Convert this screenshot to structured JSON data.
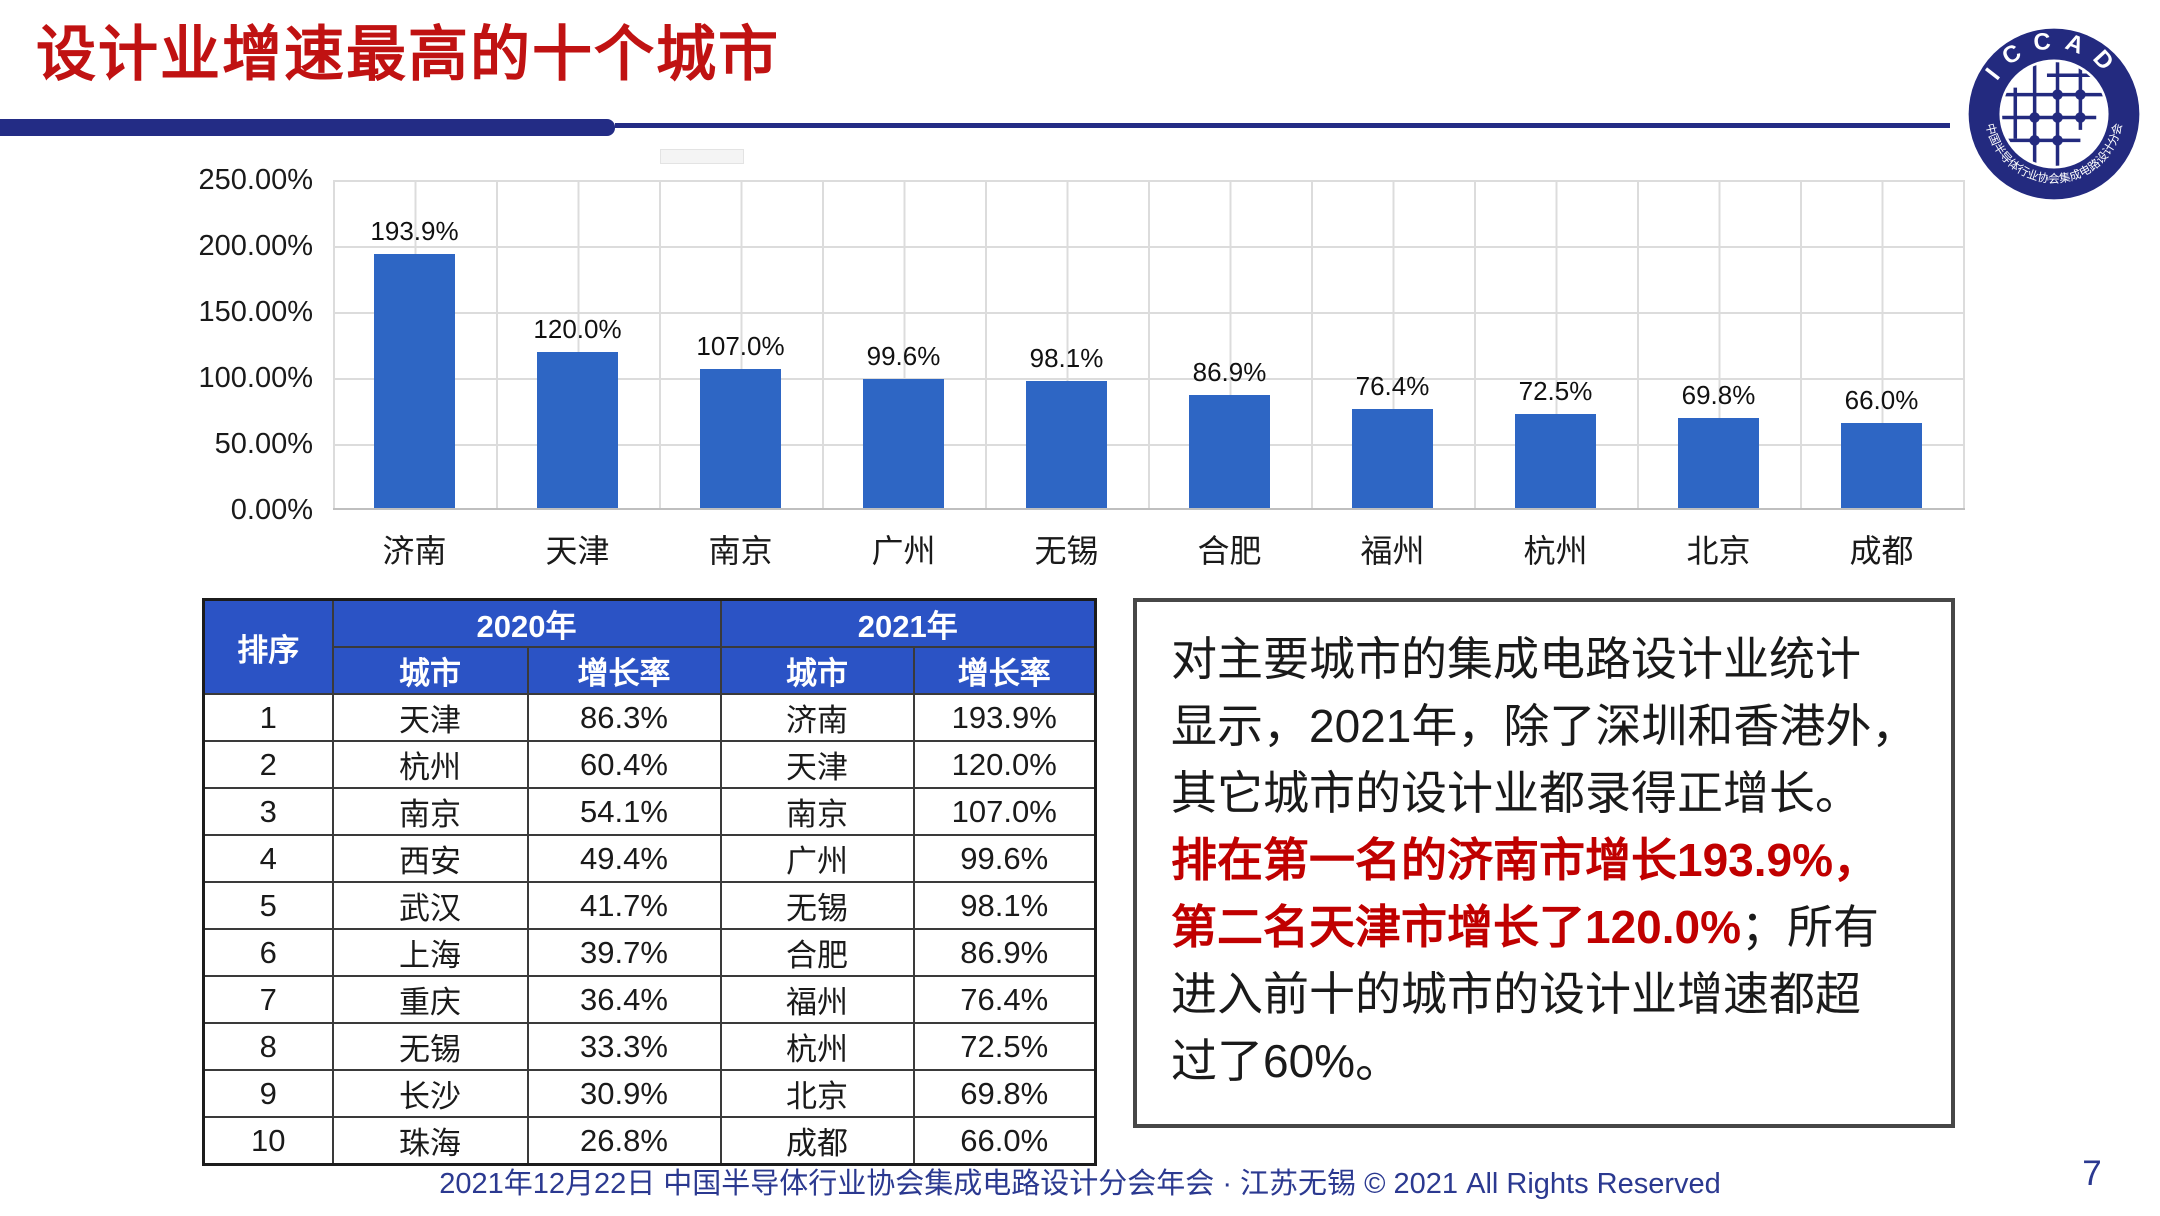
{
  "slide": {
    "title": "设计业增速最高的十个城市",
    "footer": "2021年12月22日 中国半导体行业协会集成电路设计分会年会 · 江苏无锡 © 2021 All Rights Reserved",
    "page_number": "7"
  },
  "colors": {
    "title_red": "#C01212",
    "bar_blue": "#2E66C4",
    "header_blue": "#2B53C5",
    "rule_navy": "#232C85",
    "footer_navy": "#2B3990",
    "commentary_red": "#C00000",
    "logo_navy": "#232A7F"
  },
  "logo": {
    "arc_top": "ICCAD",
    "arc_bottom": "中国半导体行业协会集成电路设计分会"
  },
  "chart_data": {
    "type": "bar",
    "title": "",
    "xlabel": "",
    "ylabel": "",
    "categories": [
      "济南",
      "天津",
      "南京",
      "广州",
      "无锡",
      "合肥",
      "福州",
      "杭州",
      "北京",
      "成都"
    ],
    "values": [
      193.9,
      120.0,
      107.0,
      99.6,
      98.1,
      86.9,
      76.4,
      72.5,
      69.8,
      66.0
    ],
    "labels": [
      "193.9%",
      "120.0%",
      "107.0%",
      "99.6%",
      "98.1%",
      "86.9%",
      "76.4%",
      "72.5%",
      "69.8%",
      "66.0%"
    ],
    "yticks": [
      "250.00%",
      "200.00%",
      "150.00%",
      "100.00%",
      "50.00%",
      "0.00%"
    ],
    "ylim": [
      0,
      250
    ],
    "grid": true,
    "legend_position": "none"
  },
  "table": {
    "col_rank": "排序",
    "col_2020": "2020年",
    "col_2021": "2021年",
    "col_city": "城市",
    "col_rate": "增长率",
    "rows": [
      {
        "rank": "1",
        "city_2020": "天津",
        "rate_2020": "86.3%",
        "city_2021": "济南",
        "rate_2021": "193.9%"
      },
      {
        "rank": "2",
        "city_2020": "杭州",
        "rate_2020": "60.4%",
        "city_2021": "天津",
        "rate_2021": "120.0%"
      },
      {
        "rank": "3",
        "city_2020": "南京",
        "rate_2020": "54.1%",
        "city_2021": "南京",
        "rate_2021": "107.0%"
      },
      {
        "rank": "4",
        "city_2020": "西安",
        "rate_2020": "49.4%",
        "city_2021": "广州",
        "rate_2021": "99.6%"
      },
      {
        "rank": "5",
        "city_2020": "武汉",
        "rate_2020": "41.7%",
        "city_2021": "无锡",
        "rate_2021": "98.1%"
      },
      {
        "rank": "6",
        "city_2020": "上海",
        "rate_2020": "39.7%",
        "city_2021": "合肥",
        "rate_2021": "86.9%"
      },
      {
        "rank": "7",
        "city_2020": "重庆",
        "rate_2020": "36.4%",
        "city_2021": "福州",
        "rate_2021": "76.4%"
      },
      {
        "rank": "8",
        "city_2020": "无锡",
        "rate_2020": "33.3%",
        "city_2021": "杭州",
        "rate_2021": "72.5%"
      },
      {
        "rank": "9",
        "city_2020": "长沙",
        "rate_2020": "30.9%",
        "city_2021": "北京",
        "rate_2021": "69.8%"
      },
      {
        "rank": "10",
        "city_2020": "珠海",
        "rate_2020": "26.8%",
        "city_2021": "成都",
        "rate_2021": "66.0%"
      }
    ]
  },
  "commentary": {
    "lines": [
      [
        {
          "t": "对主要城市的集成电路设计业统计",
          "red": false
        }
      ],
      [
        {
          "t": "显示，2021年，除了深圳和香港外，",
          "red": false
        }
      ],
      [
        {
          "t": "其它城市的设计业都录得正增长。",
          "red": false
        }
      ],
      [
        {
          "t": "排在第一名的济南市增长193.9%，",
          "red": true
        }
      ],
      [
        {
          "t": "第二名天津市增长了120.0%",
          "red": true
        },
        {
          "t": "；所有",
          "red": false
        }
      ],
      [
        {
          "t": "进入前十的城市的设计业增速都超",
          "red": false
        }
      ],
      [
        {
          "t": "过了60%。",
          "red": false
        }
      ]
    ]
  }
}
